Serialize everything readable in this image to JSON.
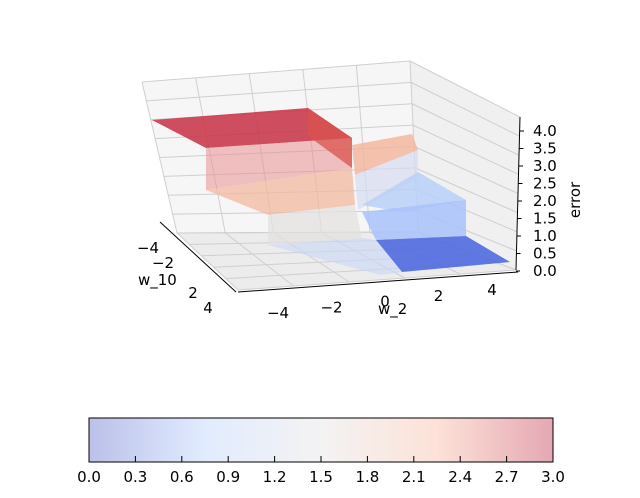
{
  "chart_data": {
    "type": "surface3d",
    "title": "",
    "xlabel": "w_10",
    "ylabel": "w_2",
    "zlabel": "error",
    "xticks": [
      "−4",
      "−2",
      "0",
      "2",
      "4"
    ],
    "yticks": [
      "−4",
      "−2",
      "0",
      "2",
      "4"
    ],
    "zticks": [
      "0.0",
      "0.5",
      "1.0",
      "1.5",
      "2.0",
      "2.5",
      "3.0",
      "3.5",
      "4.0"
    ],
    "zlim": [
      0,
      4
    ],
    "surface_levels": [
      {
        "name": "",
        "z": 4.0,
        "region": "w_10 < 0, w_2 < 0"
      },
      {
        "name": "",
        "z": 2.0,
        "region": "w_10 < 0, w_2 > 0"
      },
      {
        "name": "",
        "z": 2.0,
        "region": "w_10 > 0, w_2 < 0"
      },
      {
        "name": "",
        "z": 0.0,
        "region": "w_10 > 0, w_2 > 0"
      }
    ],
    "colormap": "coolwarm",
    "colorbar": {
      "range": [
        0.0,
        3.0
      ],
      "ticks": [
        "0.0",
        "0.3",
        "0.6",
        "0.9",
        "1.2",
        "1.5",
        "1.8",
        "2.1",
        "2.4",
        "2.7",
        "3.0"
      ],
      "colors": [
        "#3b4cc0",
        "#b40426"
      ]
    },
    "grid": true
  }
}
